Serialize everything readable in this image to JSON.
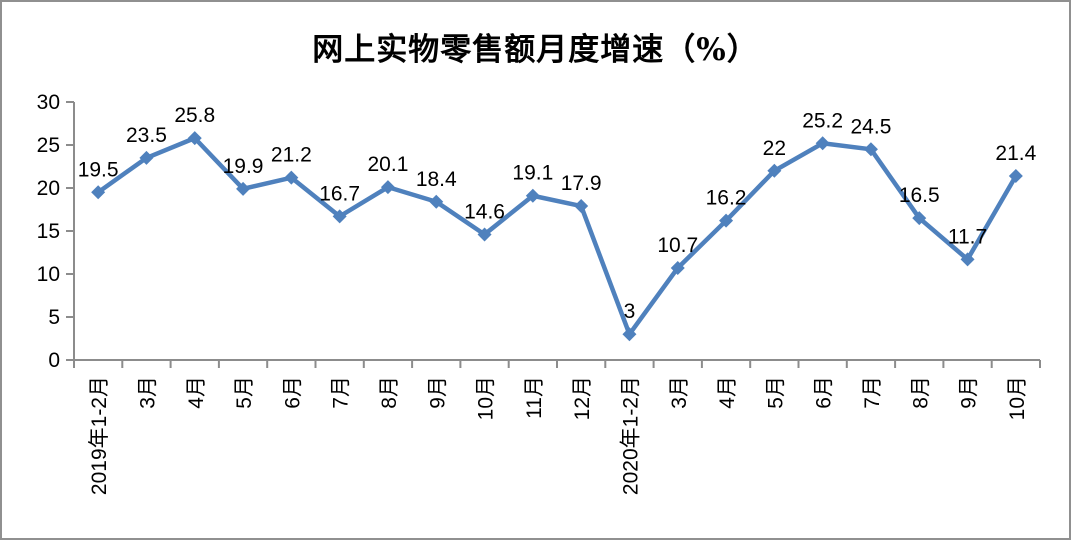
{
  "chart_data": {
    "type": "line",
    "title": "网上实物零售额月度增速（%）",
    "categories": [
      "2019年1-2月",
      "3月",
      "4月",
      "5月",
      "6月",
      "7月",
      "8月",
      "9月",
      "10月",
      "11月",
      "12月",
      "2020年1-2月",
      "3月",
      "4月",
      "5月",
      "6月",
      "7月",
      "8月",
      "9月",
      "10月"
    ],
    "values": [
      19.5,
      23.5,
      25.8,
      19.9,
      21.2,
      16.7,
      20.1,
      18.4,
      14.6,
      19.1,
      17.9,
      3,
      10.7,
      16.2,
      22,
      25.2,
      24.5,
      16.5,
      11.7,
      21.4
    ],
    "yticks": [
      0,
      5,
      10,
      15,
      20,
      25,
      30
    ],
    "ylim": [
      0,
      30
    ],
    "grid": false,
    "legend_position": "none",
    "data_labels": true,
    "marker": "diamond",
    "colors": {
      "series": "#4F81BD",
      "axis": "#8C8C8C",
      "text": "#000000",
      "frame_border": "#909090"
    }
  }
}
